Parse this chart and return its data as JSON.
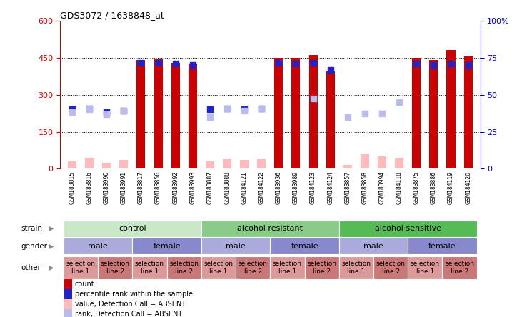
{
  "title": "GDS3072 / 1638848_at",
  "samples": [
    "GSM183815",
    "GSM183816",
    "GSM183990",
    "GSM183991",
    "GSM183817",
    "GSM183856",
    "GSM183992",
    "GSM183993",
    "GSM183887",
    "GSM183888",
    "GSM184121",
    "GSM184122",
    "GSM183936",
    "GSM183989",
    "GSM184123",
    "GSM184124",
    "GSM183857",
    "GSM183858",
    "GSM183994",
    "GSM184118",
    "GSM183875",
    "GSM183886",
    "GSM184119",
    "GSM184120"
  ],
  "red_bars": [
    30,
    45,
    25,
    35,
    440,
    445,
    430,
    425,
    30,
    40,
    35,
    40,
    450,
    450,
    460,
    395,
    15,
    60,
    50,
    45,
    450,
    440,
    480,
    455
  ],
  "blue_squares": [
    240,
    245,
    230,
    235,
    430,
    430,
    425,
    420,
    240,
    245,
    240,
    245,
    430,
    425,
    430,
    400,
    null,
    null,
    null,
    null,
    425,
    420,
    425,
    420
  ],
  "pink_bars": [
    30,
    45,
    25,
    35,
    null,
    null,
    null,
    null,
    30,
    40,
    35,
    40,
    null,
    null,
    null,
    null,
    15,
    60,
    50,
    45,
    null,
    null,
    null,
    null
  ],
  "light_blue_squares": [
    230,
    240,
    220,
    235,
    null,
    null,
    null,
    null,
    210,
    245,
    235,
    245,
    null,
    null,
    285,
    null,
    210,
    225,
    225,
    270,
    null,
    null,
    null,
    null
  ],
  "ylim_left": [
    0,
    600
  ],
  "ylim_right": [
    0,
    100
  ],
  "yticks_left": [
    0,
    150,
    300,
    450,
    600
  ],
  "yticks_right": [
    0,
    25,
    50,
    75,
    100
  ],
  "strain_groups": [
    {
      "label": "control",
      "start": 0,
      "end": 8,
      "color": "#c8e8c8"
    },
    {
      "label": "alcohol resistant",
      "start": 8,
      "end": 16,
      "color": "#88cc88"
    },
    {
      "label": "alcohol sensitive",
      "start": 16,
      "end": 24,
      "color": "#55bb55"
    }
  ],
  "gender_groups": [
    {
      "label": "male",
      "start": 0,
      "end": 4,
      "color": "#aaaadd"
    },
    {
      "label": "female",
      "start": 4,
      "end": 8,
      "color": "#8888cc"
    },
    {
      "label": "male",
      "start": 8,
      "end": 12,
      "color": "#aaaadd"
    },
    {
      "label": "female",
      "start": 12,
      "end": 16,
      "color": "#8888cc"
    },
    {
      "label": "male",
      "start": 16,
      "end": 20,
      "color": "#aaaadd"
    },
    {
      "label": "female",
      "start": 20,
      "end": 24,
      "color": "#8888cc"
    }
  ],
  "other_groups": [
    {
      "label": "selection\nline 1",
      "start": 0,
      "end": 2,
      "color": "#dd9999"
    },
    {
      "label": "selection\nline 2",
      "start": 2,
      "end": 4,
      "color": "#cc7777"
    },
    {
      "label": "selection\nline 1",
      "start": 4,
      "end": 6,
      "color": "#dd9999"
    },
    {
      "label": "selection\nline 2",
      "start": 6,
      "end": 8,
      "color": "#cc7777"
    },
    {
      "label": "selection\nline 1",
      "start": 8,
      "end": 10,
      "color": "#dd9999"
    },
    {
      "label": "selection\nline 2",
      "start": 10,
      "end": 12,
      "color": "#cc7777"
    },
    {
      "label": "selection\nline 1",
      "start": 12,
      "end": 14,
      "color": "#dd9999"
    },
    {
      "label": "selection\nline 2",
      "start": 14,
      "end": 16,
      "color": "#cc7777"
    },
    {
      "label": "selection\nline 1",
      "start": 16,
      "end": 18,
      "color": "#dd9999"
    },
    {
      "label": "selection\nline 2",
      "start": 18,
      "end": 20,
      "color": "#cc7777"
    },
    {
      "label": "selection\nline 1",
      "start": 20,
      "end": 22,
      "color": "#dd9999"
    },
    {
      "label": "selection\nline 2",
      "start": 22,
      "end": 24,
      "color": "#cc7777"
    }
  ],
  "bar_width": 0.5,
  "red_color": "#cc0000",
  "blue_color": "#2222cc",
  "pink_color": "#ffbbbb",
  "light_blue_color": "#bbbbee",
  "bg_color": "#ffffff",
  "tick_label_color": "#cc0000",
  "right_tick_color": "#0000cc",
  "title_color": "#000000",
  "xlabel_bg": "#dddddd",
  "row_label_color": "#888888"
}
